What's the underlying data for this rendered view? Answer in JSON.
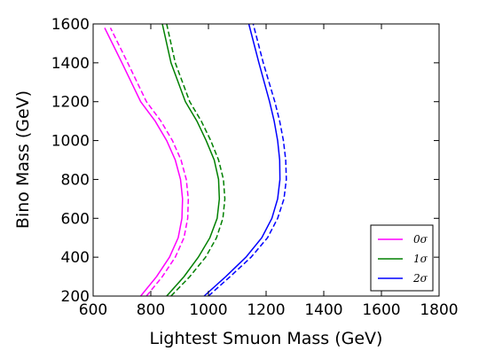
{
  "chart_data": {
    "type": "line",
    "xlabel": "Lightest Smuon Mass (GeV)",
    "ylabel": "Bino Mass (GeV)",
    "xlim": [
      600,
      1800
    ],
    "ylim": [
      200,
      1600
    ],
    "xticks": [
      "600",
      "800",
      "1000",
      "1200",
      "1400",
      "1600",
      "1800"
    ],
    "yticks": [
      "200",
      "400",
      "600",
      "800",
      "1000",
      "1200",
      "1400",
      "1600"
    ],
    "grid": false,
    "legend_position": "bottom-right",
    "legend": [
      {
        "label": "0σ",
        "color": "#ff00ff"
      },
      {
        "label": "1σ",
        "color": "#008000"
      },
      {
        "label": "2σ",
        "color": "#0000ff"
      }
    ],
    "series": [
      {
        "group": "0σ",
        "style": "solid",
        "color": "#ff00ff",
        "x": [
          765,
          820,
          865,
          895,
          908,
          910,
          903,
          885,
          855,
          815,
          765,
          700,
          640
        ],
        "y": [
          200,
          300,
          400,
          500,
          600,
          700,
          800,
          900,
          1000,
          1100,
          1200,
          1400,
          1580
        ]
      },
      {
        "group": "0σ",
        "style": "dashed",
        "color": "#ff00ff",
        "x": [
          785,
          840,
          885,
          915,
          928,
          930,
          923,
          905,
          875,
          835,
          785,
          720,
          660
        ],
        "y": [
          200,
          300,
          400,
          500,
          600,
          700,
          800,
          900,
          1000,
          1100,
          1200,
          1400,
          1580
        ]
      },
      {
        "group": "1σ",
        "style": "solid",
        "color": "#008000",
        "x": [
          855,
          915,
          965,
          1005,
          1030,
          1038,
          1035,
          1020,
          992,
          960,
          920,
          870,
          840
        ],
        "y": [
          200,
          300,
          400,
          500,
          600,
          700,
          800,
          900,
          1000,
          1100,
          1200,
          1400,
          1600
        ]
      },
      {
        "group": "1σ",
        "style": "dashed",
        "color": "#008000",
        "x": [
          870,
          935,
          990,
          1028,
          1050,
          1057,
          1052,
          1035,
          1008,
          975,
          935,
          885,
          855
        ],
        "y": [
          200,
          300,
          400,
          500,
          600,
          700,
          800,
          900,
          1000,
          1100,
          1200,
          1400,
          1600
        ]
      },
      {
        "group": "2σ",
        "style": "solid",
        "color": "#0000ff",
        "x": [
          985,
          1060,
          1130,
          1185,
          1220,
          1240,
          1248,
          1247,
          1240,
          1228,
          1212,
          1175,
          1140
        ],
        "y": [
          200,
          300,
          400,
          500,
          600,
          700,
          800,
          900,
          1000,
          1100,
          1200,
          1400,
          1600
        ]
      },
      {
        "group": "2σ",
        "style": "dashed",
        "color": "#0000ff",
        "x": [
          1000,
          1075,
          1148,
          1205,
          1240,
          1262,
          1270,
          1268,
          1260,
          1247,
          1230,
          1190,
          1155
        ],
        "y": [
          200,
          300,
          400,
          500,
          600,
          700,
          800,
          900,
          1000,
          1100,
          1200,
          1400,
          1600
        ]
      }
    ]
  }
}
